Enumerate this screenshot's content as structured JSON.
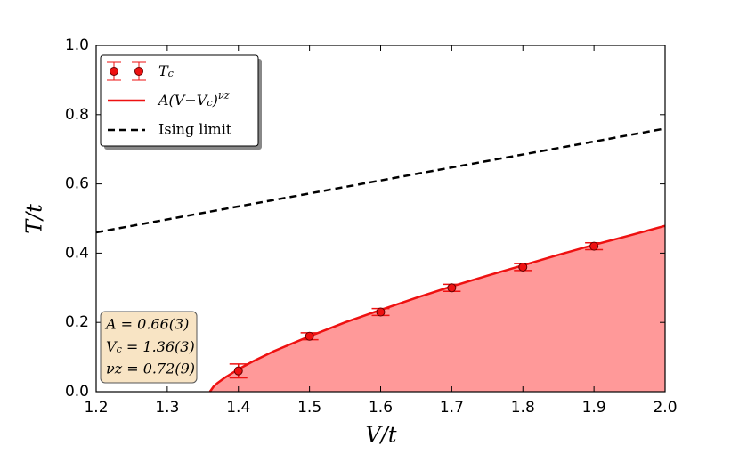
{
  "chart_data": {
    "type": "scatter",
    "xlabel": "V/t",
    "ylabel": "T/t",
    "xlim": [
      1.2,
      2.0
    ],
    "ylim": [
      0,
      1.0
    ],
    "xticks": [
      1.2,
      1.3,
      1.4,
      1.5,
      1.6,
      1.7,
      1.8,
      1.9,
      {
        "value": 2,
        "label": "2.0"
      }
    ],
    "yticks": [
      {
        "value": 0,
        "label": "0.0"
      },
      0.2,
      0.4,
      0.6,
      0.8,
      {
        "value": 1,
        "label": "1.0"
      }
    ],
    "legend": "upper left",
    "series": [
      {
        "name": "T_c",
        "type": "errorbar",
        "color": "#ee1111",
        "x": [
          1.4,
          1.5,
          1.6,
          1.7,
          1.8,
          1.9
        ],
        "values": [
          0.06,
          0.16,
          0.23,
          0.3,
          0.36,
          0.42
        ],
        "errors": [
          0.02,
          0.01,
          0.01,
          0.01,
          0.01,
          0.01
        ]
      },
      {
        "name": "A(V−V_c)^νz",
        "type": "fit",
        "color": "#ee1111",
        "fill": "#ff9999",
        "x": [
          1.36,
          1.365,
          1.37,
          1.38,
          1.4,
          1.42,
          1.45,
          1.5,
          1.55,
          1.6,
          1.65,
          1.7,
          1.75,
          1.8,
          1.85,
          1.9,
          1.95,
          2.0
        ],
        "values": [
          0,
          0.0145,
          0.024,
          0.039,
          0.065,
          0.087,
          0.117,
          0.16,
          0.2,
          0.236,
          0.271,
          0.304,
          0.335,
          0.365,
          0.395,
          0.424,
          0.451,
          0.479
        ]
      },
      {
        "name": "Ising limit",
        "type": "dashed",
        "color": "#000000",
        "x": [
          1.2,
          2.0
        ],
        "values": [
          0.46,
          0.76
        ]
      }
    ],
    "annotations": [
      "A = 0.66(3)",
      "V_c = 1.36(3)",
      "νz = 0.72(9)"
    ]
  }
}
